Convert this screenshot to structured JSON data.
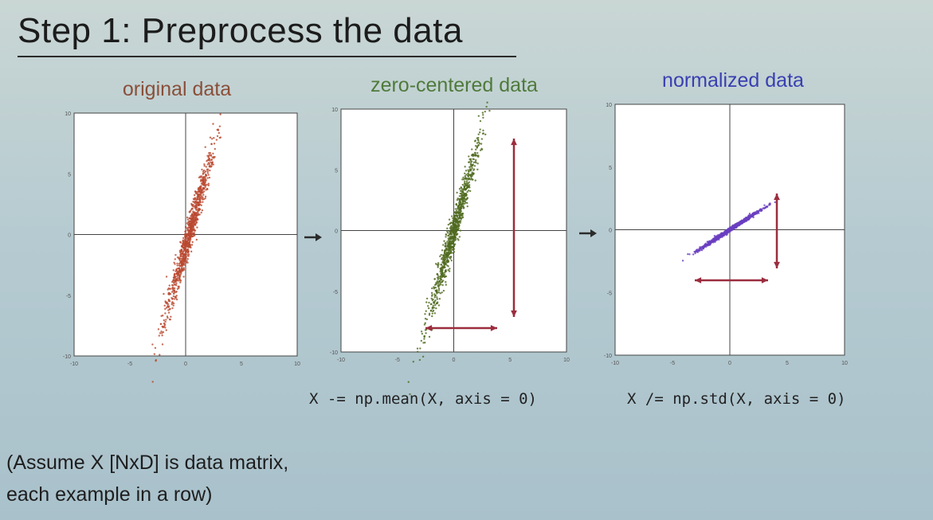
{
  "slide": {
    "title": "Step 1: Preprocess the data",
    "plots": [
      {
        "id": "original",
        "title": "original data",
        "title_color": "#8a4f3a",
        "point_color": "#b9482f",
        "mean": [
          0.3,
          0.0
        ],
        "x_ticks": [
          "-10",
          "-5",
          "0",
          "5",
          "10"
        ],
        "y_ticks": [
          "10",
          "5",
          "0",
          "-5",
          "-10"
        ]
      },
      {
        "id": "zero-centered",
        "title": "zero-centered data",
        "title_color": "#4f7a3a",
        "point_color": "#4f6a1f",
        "mean": [
          0.0,
          0.0
        ],
        "x_ticks": [
          "-10",
          "-5",
          "0",
          "5",
          "10"
        ],
        "y_ticks": [
          "10",
          "5",
          "0",
          "-5",
          "-10"
        ]
      },
      {
        "id": "normalized",
        "title": "normalized data",
        "title_color": "#3a3fb0",
        "point_color": "#6a3fc0",
        "x_ticks": [
          "-10",
          "-5",
          "0",
          "5",
          "10"
        ],
        "y_ticks": [
          "10",
          "5",
          "0",
          "-5",
          "-10"
        ]
      }
    ],
    "code": {
      "zero_center": "X -= np.mean(X, axis = 0)",
      "normalize": "X /= np.std(X, axis = 0)"
    },
    "note": {
      "line1": "(Assume X [NxD] is data matrix,",
      "line2": "each example in a row)"
    },
    "colors": {
      "arrow": "#9b2d3e",
      "flow_arrow": "#2b2b2b",
      "axis": "#444444"
    }
  }
}
